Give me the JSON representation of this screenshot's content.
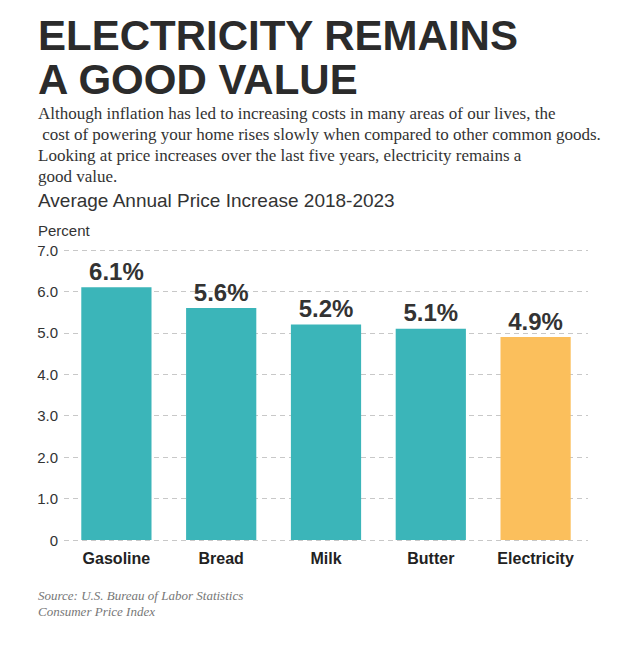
{
  "chart_data": {
    "type": "bar",
    "title": "ELECTRICITY REMAINS A GOOD VALUE",
    "subtitle": "Although inflation has led to increasing costs in many areas of our lives, the cost of powering your home rises slowly when compared to other common goods. Looking at price increases over the last five years, electricity remains a good value.",
    "chart_title": "Average Annual Price Increase 2018-2023",
    "ylabel": "Percent",
    "categories": [
      "Gasoline",
      "Bread",
      "Milk",
      "Butter",
      "Electricity"
    ],
    "values": [
      6.1,
      5.6,
      5.2,
      5.1,
      4.9
    ],
    "value_labels": [
      "6.1%",
      "5.6%",
      "5.2%",
      "5.1%",
      "4.9%"
    ],
    "colors": [
      "#3bb5b9",
      "#3bb5b9",
      "#3bb5b9",
      "#3bb5b9",
      "#fbbf5c"
    ],
    "ylim": [
      0,
      7
    ],
    "yticks": [
      0,
      {
        "value": 1,
        "label": "1.0"
      },
      {
        "value": 2,
        "label": "2.0"
      },
      {
        "value": 3,
        "label": "3.0"
      },
      {
        "value": 4,
        "label": "4.0"
      },
      {
        "value": 5,
        "label": "5.0"
      },
      {
        "value": 6,
        "label": "6.0"
      },
      {
        "value": 7,
        "label": "7.0"
      }
    ],
    "grid": true,
    "data_labels": true,
    "source": [
      "Source: U.S. Bureau of Labor Statistics",
      "Consumer Price Index"
    ]
  }
}
